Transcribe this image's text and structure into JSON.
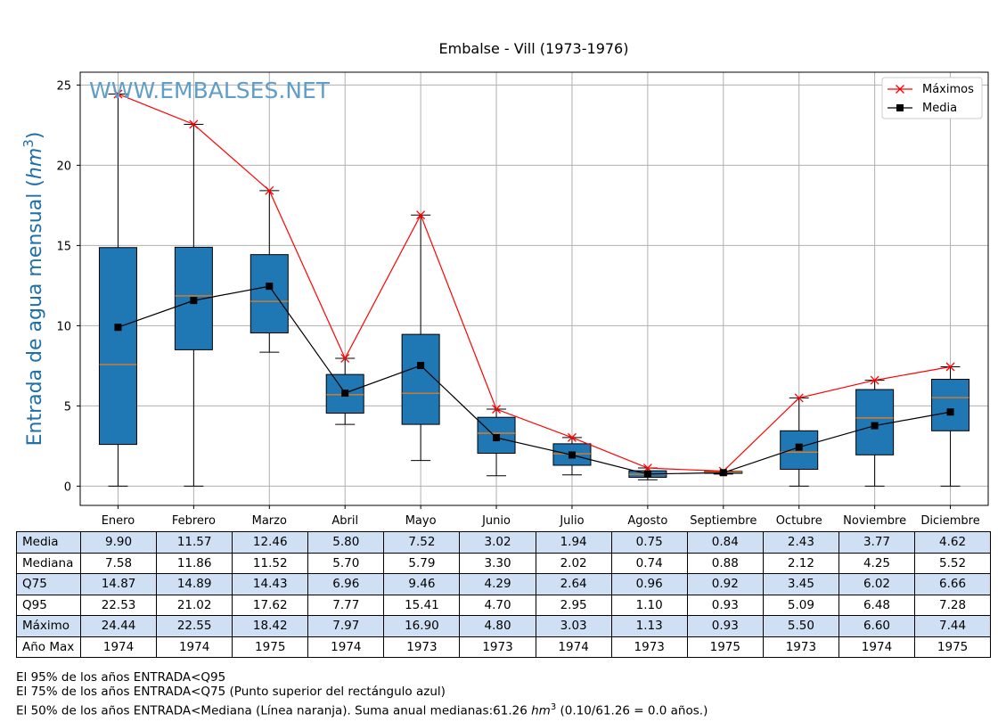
{
  "chart_data": {
    "type": "box",
    "title": "Embalse - Vill (1973-1976)",
    "ylabel": "Entrada de agua mensual (hm³)",
    "ylabel_text": "Entrada de agua mensual (",
    "ylabel_unit": "hm",
    "ylabel_exp": "3",
    "ylabel_close": ")",
    "ylim": [
      -1.2,
      25.8
    ],
    "yticks": [
      0,
      5,
      10,
      15,
      20,
      25
    ],
    "grid": true,
    "legend_position": "top-right",
    "watermark": "WWW.EMBALSES.NET",
    "categories": [
      "Enero",
      "Febrero",
      "Marzo",
      "Abril",
      "Mayo",
      "Junio",
      "Julio",
      "Agosto",
      "Septiembre",
      "Octubre",
      "Noviembre",
      "Diciembre"
    ],
    "boxes": {
      "q25": [
        2.6,
        8.5,
        9.55,
        4.55,
        3.85,
        2.05,
        1.3,
        0.55,
        0.8,
        1.05,
        1.95,
        3.45
      ],
      "median": [
        7.58,
        11.86,
        11.52,
        5.7,
        5.79,
        3.3,
        2.02,
        0.74,
        0.88,
        2.12,
        4.25,
        5.52
      ],
      "q75": [
        14.87,
        14.89,
        14.43,
        6.96,
        9.46,
        4.29,
        2.64,
        0.96,
        0.92,
        3.45,
        6.02,
        6.66
      ],
      "whisker_low": [
        0.0,
        0.0,
        8.35,
        3.85,
        1.6,
        0.65,
        0.7,
        0.4,
        0.75,
        0.0,
        0.0,
        0.0
      ],
      "whisker_high": [
        24.44,
        22.55,
        18.42,
        7.97,
        16.9,
        4.8,
        3.03,
        1.13,
        0.93,
        5.5,
        6.6,
        7.44
      ]
    },
    "series": [
      {
        "name": "Máximos",
        "color": "#ff0000",
        "marker": "x",
        "values": [
          24.44,
          22.55,
          18.42,
          7.97,
          16.9,
          4.8,
          3.03,
          1.13,
          0.93,
          5.5,
          6.6,
          7.44
        ]
      },
      {
        "name": "Media",
        "color": "#000000",
        "marker": "square",
        "values": [
          9.9,
          11.57,
          12.46,
          5.8,
          7.52,
          3.02,
          1.94,
          0.75,
          0.84,
          2.43,
          3.77,
          4.62
        ]
      }
    ],
    "colors": {
      "box": "#1f77b4",
      "median": "#ff7f0e",
      "watermark": "#5f9ec8",
      "ylabel": "#1f6fa8",
      "grid": "#b0b0b0"
    }
  },
  "table": {
    "rows": [
      {
        "label": "Media",
        "shaded": true,
        "values": [
          "9.90",
          "11.57",
          "12.46",
          "5.80",
          "7.52",
          "3.02",
          "1.94",
          "0.75",
          "0.84",
          "2.43",
          "3.77",
          "4.62"
        ]
      },
      {
        "label": "Mediana",
        "shaded": false,
        "values": [
          "7.58",
          "11.86",
          "11.52",
          "5.70",
          "5.79",
          "3.30",
          "2.02",
          "0.74",
          "0.88",
          "2.12",
          "4.25",
          "5.52"
        ]
      },
      {
        "label": "Q75",
        "shaded": true,
        "values": [
          "14.87",
          "14.89",
          "14.43",
          "6.96",
          "9.46",
          "4.29",
          "2.64",
          "0.96",
          "0.92",
          "3.45",
          "6.02",
          "6.66"
        ]
      },
      {
        "label": "Q95",
        "shaded": false,
        "values": [
          "22.53",
          "21.02",
          "17.62",
          "7.77",
          "15.41",
          "4.70",
          "2.95",
          "1.10",
          "0.93",
          "5.09",
          "6.48",
          "7.28"
        ]
      },
      {
        "label": "Máximo",
        "shaded": true,
        "values": [
          "24.44",
          "22.55",
          "18.42",
          "7.97",
          "16.90",
          "4.80",
          "3.03",
          "1.13",
          "0.93",
          "5.50",
          "6.60",
          "7.44"
        ]
      },
      {
        "label": "Año Max",
        "shaded": false,
        "values": [
          "1974",
          "1974",
          "1975",
          "1974",
          "1973",
          "1973",
          "1974",
          "1973",
          "1975",
          "1973",
          "1974",
          "1975"
        ]
      }
    ]
  },
  "notes": {
    "line1": "El 95% de los años ENTRADA<Q95",
    "line2": "El 75% de los años ENTRADA<Q75 (Punto superior del rectángulo azul)",
    "line3_pre": "El 50% de los años ENTRADA<Mediana (Línea naranja). Suma anual medianas:61.26 ",
    "line3_unit": "hm",
    "line3_exp": "3",
    "line3_post": " (0.10/61.26 = 0.0 años.)"
  }
}
